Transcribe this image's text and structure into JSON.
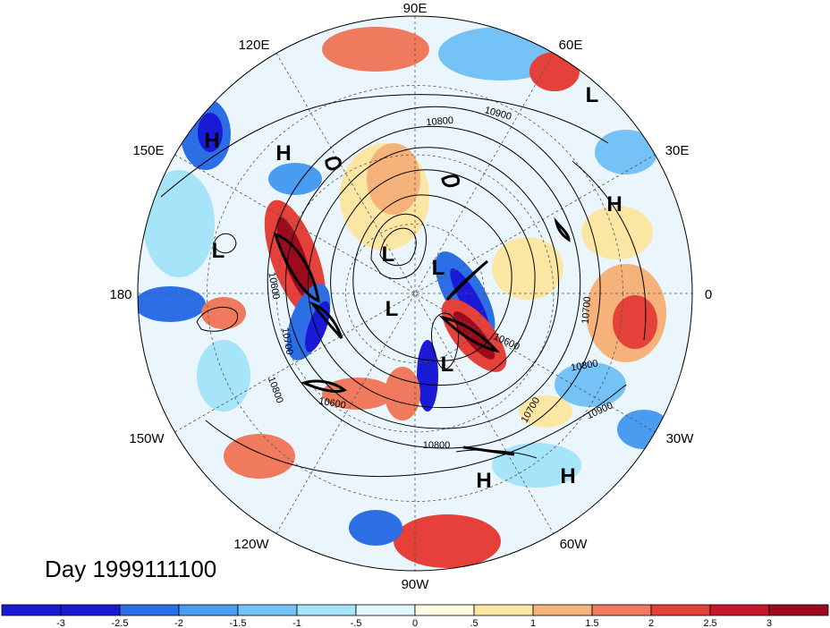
{
  "date_label": "Day 1999111100",
  "longitude_labels": [
    "90E",
    "60E",
    "30E",
    "0",
    "30W",
    "60W",
    "90W",
    "120W",
    "150W",
    "180",
    "150E",
    "120E"
  ],
  "pressure_centers": [
    "L",
    "H",
    "H",
    "L",
    "L",
    "L",
    "L",
    "H",
    "L",
    "L",
    "H",
    "H",
    "H"
  ],
  "contour_labels": [
    "10800",
    "10900",
    "10600",
    "10700",
    "10600",
    "10800",
    "10700",
    "10900",
    "10800",
    "10600",
    "10800",
    "10700",
    "10600"
  ],
  "colorbar": {
    "tick_labels": [
      "-3",
      "-2.5",
      "-2",
      "-1.5",
      "-1",
      "-.5",
      "0",
      ".5",
      "1",
      "1.5",
      "2",
      "2.5",
      "3"
    ],
    "colors": [
      "#1a1ad6",
      "#2c6ee6",
      "#4a9cf0",
      "#74c2f6",
      "#a6e4fa",
      "#e0f8fc",
      "#fffbe3",
      "#fce6a4",
      "#f5b27a",
      "#ef7a5e",
      "#e6403a",
      "#c8162a",
      "#9c0a1e"
    ]
  }
}
